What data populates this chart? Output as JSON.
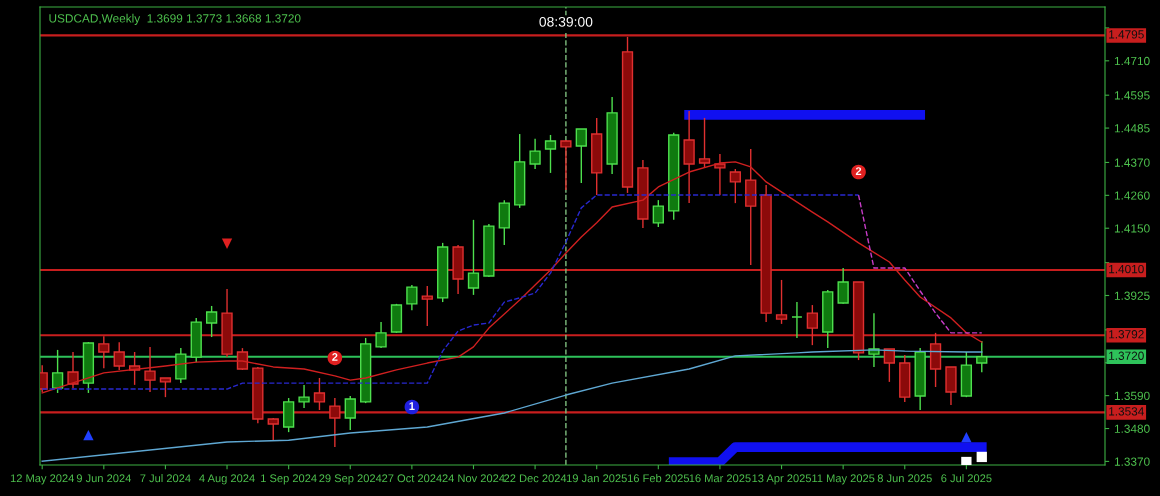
{
  "chart_data": {
    "type": "candlestick",
    "title": "USDCAD,Weekly  1.3699 1.3773 1.3668 1.3720",
    "x": [
      "2024-05-12",
      "2024-05-19",
      "2024-05-26",
      "2024-06-02",
      "2024-06-09",
      "2024-06-16",
      "2024-06-23",
      "2024-06-30",
      "2024-07-07",
      "2024-07-14",
      "2024-07-21",
      "2024-07-28",
      "2024-08-04",
      "2024-08-11",
      "2024-08-18",
      "2024-08-25",
      "2024-09-01",
      "2024-09-08",
      "2024-09-15",
      "2024-09-22",
      "2024-09-29",
      "2024-10-06",
      "2024-10-13",
      "2024-10-20",
      "2024-10-27",
      "2024-11-03",
      "2024-11-10",
      "2024-11-17",
      "2024-11-24",
      "2024-12-01",
      "2024-12-08",
      "2024-12-15",
      "2024-12-22",
      "2024-12-29",
      "2025-01-05",
      "2025-01-12",
      "2025-01-19",
      "2025-01-26",
      "2025-02-02",
      "2025-02-09",
      "2025-02-16",
      "2025-02-23",
      "2025-03-02",
      "2025-03-09",
      "2025-03-16",
      "2025-03-23",
      "2025-03-30",
      "2025-04-06",
      "2025-04-13",
      "2025-04-20",
      "2025-04-27",
      "2025-05-04",
      "2025-05-11",
      "2025-05-18",
      "2025-05-25",
      "2025-06-01",
      "2025-06-08",
      "2025-06-15",
      "2025-06-22",
      "2025-06-29",
      "2025-07-06",
      "2025-07-13"
    ],
    "ohlc": [
      [
        1.3666,
        1.3692,
        1.3602,
        1.3612
      ],
      [
        1.3615,
        1.3743,
        1.3599,
        1.3666
      ],
      [
        1.3669,
        1.3736,
        1.3615,
        1.3629
      ],
      [
        1.3632,
        1.3769,
        1.3599,
        1.3766
      ],
      [
        1.3763,
        1.3789,
        1.3682,
        1.3736
      ],
      [
        1.3736,
        1.3769,
        1.3676,
        1.3689
      ],
      [
        1.3689,
        1.3736,
        1.3626,
        1.3676
      ],
      [
        1.3672,
        1.3753,
        1.3602,
        1.3642
      ],
      [
        1.3649,
        1.3649,
        1.3585,
        1.3636
      ],
      [
        1.3646,
        1.3749,
        1.3632,
        1.3729
      ],
      [
        1.3719,
        1.385,
        1.3702,
        1.3836
      ],
      [
        1.3833,
        1.389,
        1.3786,
        1.387
      ],
      [
        1.3866,
        1.3947,
        1.3719,
        1.3729
      ],
      [
        1.3736,
        1.3749,
        1.3676,
        1.3679
      ],
      [
        1.3682,
        1.3686,
        1.3498,
        1.3512
      ],
      [
        1.3512,
        1.3515,
        1.3441,
        1.3495
      ],
      [
        1.3485,
        1.3582,
        1.3468,
        1.3569
      ],
      [
        1.3569,
        1.3626,
        1.3549,
        1.3585
      ],
      [
        1.3599,
        1.3649,
        1.3542,
        1.3569
      ],
      [
        1.3555,
        1.3582,
        1.3418,
        1.3515
      ],
      [
        1.3515,
        1.3589,
        1.3475,
        1.3579
      ],
      [
        1.3569,
        1.3783,
        1.3565,
        1.3763
      ],
      [
        1.3753,
        1.3836,
        1.3749,
        1.38
      ],
      [
        1.3803,
        1.3897,
        1.38,
        1.3893
      ],
      [
        1.3897,
        1.396,
        1.3876,
        1.3953
      ],
      [
        1.3923,
        1.3957,
        1.3823,
        1.3913
      ],
      [
        1.3917,
        1.4101,
        1.3903,
        1.4087
      ],
      [
        1.4087,
        1.4094,
        1.393,
        1.398
      ],
      [
        1.395,
        1.4178,
        1.3927,
        1.4
      ],
      [
        1.399,
        1.4164,
        1.3987,
        1.4157
      ],
      [
        1.4151,
        1.4244,
        1.4094,
        1.4234
      ],
      [
        1.4228,
        1.4465,
        1.4218,
        1.4372
      ],
      [
        1.4365,
        1.4449,
        1.4348,
        1.4408
      ],
      [
        1.4415,
        1.4462,
        1.4335,
        1.4442
      ],
      [
        1.4442,
        1.4445,
        1.4278,
        1.4422
      ],
      [
        1.4425,
        1.4482,
        1.4301,
        1.4482
      ],
      [
        1.4465,
        1.4519,
        1.4261,
        1.4335
      ],
      [
        1.4365,
        1.4589,
        1.4331,
        1.4536
      ],
      [
        1.474,
        1.479,
        1.4268,
        1.4288
      ],
      [
        1.4352,
        1.4378,
        1.4151,
        1.4181
      ],
      [
        1.4168,
        1.4244,
        1.4154,
        1.4224
      ],
      [
        1.4208,
        1.4469,
        1.4178,
        1.4462
      ],
      [
        1.4445,
        1.4542,
        1.4234,
        1.4365
      ],
      [
        1.4382,
        1.4519,
        1.4352,
        1.4368
      ],
      [
        1.4365,
        1.4398,
        1.4261,
        1.4352
      ],
      [
        1.4338,
        1.4348,
        1.4234,
        1.4305
      ],
      [
        1.4311,
        1.4415,
        1.4027,
        1.4224
      ],
      [
        1.4261,
        1.4295,
        1.3836,
        1.3866
      ],
      [
        1.386,
        1.3977,
        1.383,
        1.3846
      ],
      [
        1.3853,
        1.3903,
        1.3783,
        1.3853
      ],
      [
        1.3866,
        1.3893,
        1.3759,
        1.3816
      ],
      [
        1.3803,
        1.3943,
        1.3749,
        1.3937
      ],
      [
        1.39,
        1.4017,
        1.3897,
        1.397
      ],
      [
        1.397,
        1.397,
        1.3709,
        1.3733
      ],
      [
        1.3729,
        1.3866,
        1.3686,
        1.3746
      ],
      [
        1.3746,
        1.3746,
        1.3636,
        1.3699
      ],
      [
        1.3699,
        1.3726,
        1.3569,
        1.3585
      ],
      [
        1.3589,
        1.3749,
        1.3542,
        1.3736
      ],
      [
        1.3763,
        1.38,
        1.3619,
        1.3679
      ],
      [
        1.3686,
        1.3686,
        1.3559,
        1.3602
      ],
      [
        1.3589,
        1.3736,
        1.3585,
        1.3692
      ],
      [
        1.3699,
        1.3773,
        1.3668,
        1.372
      ]
    ],
    "xlim": [
      "2024-05-11",
      "2025-09-07"
    ],
    "ylim": [
      1.3358,
      1.489
    ],
    "xticks": [
      {
        "value": "2024-05-12",
        "label": "12 May 2024"
      },
      {
        "value": "2024-06-09",
        "label": "9 Jun 2024"
      },
      {
        "value": "2024-07-07",
        "label": "7 Jul 2024"
      },
      {
        "value": "2024-08-04",
        "label": "4 Aug 2024"
      },
      {
        "value": "2024-09-01",
        "label": "1 Sep 2024"
      },
      {
        "value": "2024-09-29",
        "label": "29 Sep 2024"
      },
      {
        "value": "2024-10-27",
        "label": "27 Oct 2024"
      },
      {
        "value": "2024-11-24",
        "label": "24 Nov 2024"
      },
      {
        "value": "2024-12-22",
        "label": "22 Dec 2024"
      },
      {
        "value": "2025-01-19",
        "label": "19 Jan 2025"
      },
      {
        "value": "2025-02-16",
        "label": "16 Feb 2025"
      },
      {
        "value": "2025-03-16",
        "label": "16 Mar 2025"
      },
      {
        "value": "2025-04-13",
        "label": "13 Apr 2025"
      },
      {
        "value": "2025-05-11",
        "label": "11 May 2025"
      },
      {
        "value": "2025-06-08",
        "label": "8 Jun 2025"
      },
      {
        "value": "2025-07-06",
        "label": "6 Jul 2025"
      }
    ],
    "yticks": [
      {
        "value": 1.482,
        "label": null
      },
      {
        "value": 1.471,
        "label": "1.4710"
      },
      {
        "value": 1.4595,
        "label": "1.4595"
      },
      {
        "value": 1.4485,
        "label": "1.4485"
      },
      {
        "value": 1.437,
        "label": "1.4370"
      },
      {
        "value": 1.426,
        "label": "1.4260"
      },
      {
        "value": 1.415,
        "label": "1.4150"
      },
      {
        "value": 1.4035,
        "label": null
      },
      {
        "value": 1.3925,
        "label": "1.3925"
      },
      {
        "value": 1.381,
        "label": null
      },
      {
        "value": 1.37,
        "label": null
      },
      {
        "value": 1.359,
        "label": "1.3590"
      },
      {
        "value": 1.348,
        "label": "1.3480"
      },
      {
        "value": 1.337,
        "label": "1.3370"
      }
    ],
    "grid": false,
    "series": [
      {
        "type": "line",
        "color": "#5fa8d3",
        "line_style": "solid",
        "x": [
          "2024-05-12",
          "2024-08-04",
          "2024-09-01",
          "2024-09-29",
          "2024-11-03",
          "2024-12-08",
          "2025-01-05",
          "2025-01-26",
          "2025-03-02",
          "2025-03-23",
          "2025-04-20",
          "2025-04-27",
          "2025-05-25",
          "2025-06-08",
          "2025-07-06",
          "2025-07-13"
        ],
        "values": [
          1.3371,
          1.3435,
          1.3441,
          1.3465,
          1.3485,
          1.3532,
          1.3592,
          1.3632,
          1.3679,
          1.3723,
          1.3733,
          1.3736,
          1.3743,
          1.3739,
          1.3736,
          1.3736
        ]
      },
      {
        "type": "line",
        "color": "#d02020",
        "line_style": "solid",
        "x": [
          "2024-05-12",
          "2024-06-09",
          "2024-07-07",
          "2024-07-21",
          "2024-08-04",
          "2024-08-11",
          "2024-08-25",
          "2024-09-08",
          "2024-09-22",
          "2024-09-29",
          "2024-10-06",
          "2024-10-20",
          "2024-11-03",
          "2024-11-17",
          "2024-11-24",
          "2024-12-01",
          "2024-12-15",
          "2024-12-29",
          "2025-01-05",
          "2025-01-12",
          "2025-01-19",
          "2025-01-26",
          "2025-02-09",
          "2025-02-16",
          "2025-03-02",
          "2025-03-16",
          "2025-03-23",
          "2025-03-30",
          "2025-04-06",
          "2025-04-27",
          "2025-05-04",
          "2025-05-18",
          "2025-06-01",
          "2025-06-08",
          "2025-06-15",
          "2025-06-29",
          "2025-07-06",
          "2025-07-13"
        ],
        "values": [
          1.3599,
          1.3666,
          1.3689,
          1.3702,
          1.3706,
          1.3706,
          1.3686,
          1.3679,
          1.3656,
          1.3642,
          1.3649,
          1.3676,
          1.3699,
          1.3719,
          1.3753,
          1.3816,
          1.391,
          1.401,
          1.4067,
          1.4121,
          1.4168,
          1.4221,
          1.4244,
          1.4288,
          1.4338,
          1.4368,
          1.4372,
          1.4355,
          1.4305,
          1.4204,
          1.4171,
          1.4101,
          1.4037,
          1.3977,
          1.392,
          1.385,
          1.38,
          1.3769
        ]
      },
      {
        "type": "line",
        "color": "#2828d0",
        "line_style": "dashed",
        "x": [
          "2024-05-12",
          "2024-08-04",
          "2024-08-11",
          "2024-11-03",
          "2024-11-10",
          "2024-11-17",
          "2024-11-24",
          "2024-12-01",
          "2024-12-08",
          "2024-12-15",
          "2024-12-22",
          "2024-12-29",
          "2025-01-05",
          "2025-01-12",
          "2025-01-19",
          "2025-05-18"
        ],
        "values": [
          1.3612,
          1.3612,
          1.3632,
          1.3632,
          1.3739,
          1.3806,
          1.3826,
          1.3833,
          1.3903,
          1.3917,
          1.3933,
          1.4,
          1.4104,
          1.4218,
          1.4261,
          1.4261
        ]
      },
      {
        "type": "line",
        "color": "#c83cc8",
        "line_style": "dashed",
        "x": [
          "2025-05-18",
          "2025-05-25",
          "2025-06-08",
          "2025-06-15",
          "2025-06-22",
          "2025-06-29",
          "2025-07-13"
        ],
        "values": [
          1.4261,
          1.4017,
          1.4017,
          1.394,
          1.3866,
          1.38,
          1.38
        ]
      },
      {
        "type": "line",
        "color": "#1010f0",
        "line_style": "solid",
        "x": [
          "2025-03-02",
          "2025-06-15"
        ],
        "values": [
          1.4529,
          1.4529
        ]
      },
      {
        "type": "line",
        "color": "#1010f0",
        "line_style": "solid",
        "x": [
          "2025-02-23",
          "2025-03-16",
          "2025-03-23",
          "2025-07-13"
        ],
        "values": [
          1.3368,
          1.3368,
          1.3418,
          1.3418
        ]
      },
      {
        "type": "scatter",
        "color": "#e02020",
        "marker": "triangle_down",
        "x": [
          "2024-08-04"
        ],
        "values": [
          1.4098
        ]
      },
      {
        "type": "scatter",
        "color": "#2040ff",
        "marker": "triangle",
        "x": [
          "2024-06-02",
          "2025-07-06"
        ],
        "values": [
          1.3458,
          1.3451
        ]
      },
      {
        "type": "scatter",
        "color": "#ffffff",
        "marker": "square",
        "x": [
          "2025-07-06",
          "2025-07-13"
        ],
        "values": [
          1.3368,
          1.3385
        ]
      },
      {
        "type": "scatter",
        "color": "#e02020",
        "marker": "circle",
        "x": [
          "2024-09-22",
          "2025-05-18"
        ],
        "values": [
          1.3716,
          1.4338
        ]
      },
      {
        "type": "scatter",
        "color": "#2020e0",
        "marker": "circle",
        "x": [
          "2024-10-27"
        ],
        "values": [
          1.3552
        ]
      }
    ],
    "annotations": [
      {
        "text": "2",
        "x": "2024-09-22",
        "y": 1.3716
      },
      {
        "text": "2",
        "x": "2025-05-18",
        "y": 1.4338
      },
      {
        "text": "1",
        "x": "2024-10-27",
        "y": 1.3552
      }
    ],
    "ref_lines": [
      {
        "axis": "y",
        "value": 1.4795,
        "label": "1.4795",
        "color": "#c81e1e"
      },
      {
        "axis": "y",
        "value": 1.401,
        "label": "1.4010",
        "color": "#c81e1e"
      },
      {
        "axis": "y",
        "value": 1.3792,
        "label": "1.3792",
        "color": "#c81e1e"
      },
      {
        "axis": "y",
        "value": 1.3534,
        "label": "1.3534",
        "color": "#c81e1e"
      },
      {
        "axis": "y",
        "value": 1.372,
        "label": "1.3720",
        "color": "#2ec25a"
      },
      {
        "axis": "x",
        "value": "2025-01-05",
        "label": "08:39:00",
        "color": "#7fbf7f",
        "line_style": "dashed"
      }
    ]
  }
}
